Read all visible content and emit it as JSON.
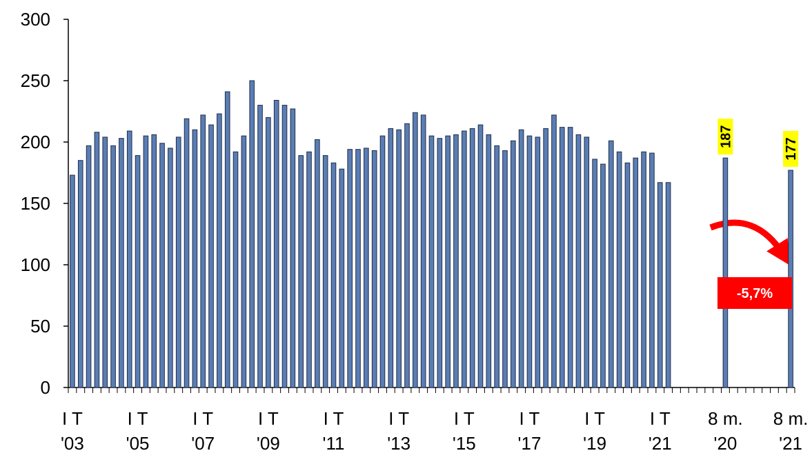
{
  "chart_data": {
    "type": "bar",
    "categories": [
      [
        "I T",
        "'03"
      ],
      null,
      null,
      null,
      null,
      null,
      null,
      null,
      [
        "I T",
        "'05"
      ],
      null,
      null,
      null,
      null,
      null,
      null,
      null,
      [
        "I T",
        "'07"
      ],
      null,
      null,
      null,
      null,
      null,
      null,
      null,
      [
        "I T",
        "'09"
      ],
      null,
      null,
      null,
      null,
      null,
      null,
      null,
      [
        "I T",
        "'11"
      ],
      null,
      null,
      null,
      null,
      null,
      null,
      null,
      [
        "I T",
        "'13"
      ],
      null,
      null,
      null,
      null,
      null,
      null,
      null,
      [
        "I T",
        "'15"
      ],
      null,
      null,
      null,
      null,
      null,
      null,
      null,
      [
        "I T",
        "'17"
      ],
      null,
      null,
      null,
      null,
      null,
      null,
      null,
      [
        "I T",
        "'19"
      ],
      null,
      null,
      null,
      null,
      null,
      null,
      null,
      [
        "I T",
        "'21"
      ],
      null,
      null,
      null,
      null,
      null,
      null,
      null,
      [
        "8 m.",
        "'20"
      ],
      null,
      null,
      null,
      null,
      null,
      null,
      null,
      [
        "8 m.",
        "'21"
      ]
    ],
    "values": [
      173,
      185,
      197,
      208,
      204,
      197,
      203,
      209,
      189,
      205,
      206,
      199,
      195,
      204,
      219,
      210,
      222,
      214,
      223,
      241,
      192,
      205,
      250,
      230,
      220,
      234,
      230,
      227,
      189,
      192,
      202,
      189,
      183,
      178,
      194,
      194,
      195,
      193,
      205,
      211,
      210,
      215,
      224,
      222,
      205,
      203,
      205,
      206,
      209,
      211,
      214,
      206,
      197,
      193,
      201,
      210,
      205,
      204,
      211,
      222,
      212,
      212,
      206,
      204,
      186,
      182,
      201,
      192,
      183,
      187,
      192,
      191,
      167,
      167,
      null,
      null,
      null,
      null,
      null,
      null,
      187,
      null,
      null,
      null,
      null,
      null,
      null,
      null,
      177
    ],
    "labeled": [
      80,
      88
    ],
    "color": "#5a7db3",
    "value_label_background": "#ffff00",
    "ylim": [
      0,
      300
    ],
    "yticks": [
      0,
      50,
      100,
      150,
      200,
      250,
      300
    ],
    "grid": false,
    "annotations": [
      {
        "text": "-5,7%",
        "color": "#ff0000"
      }
    ]
  }
}
